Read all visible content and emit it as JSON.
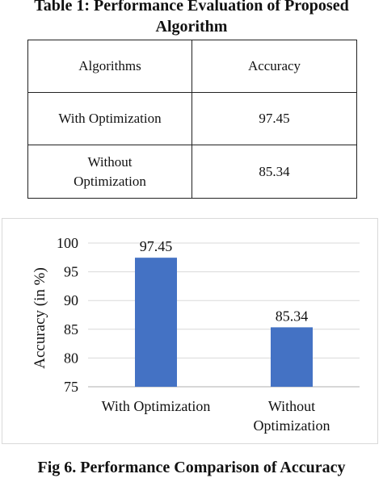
{
  "table": {
    "title_line1": "Table 1: Performance Evaluation of Proposed",
    "title_line2": "Algorithm",
    "header": [
      "Algorithms",
      "Accuracy"
    ],
    "rows": [
      {
        "algorithm_line1": "With Optimization",
        "algorithm_line2": "",
        "accuracy": "97.45"
      },
      {
        "algorithm_line1": "Without",
        "algorithm_line2": "Optimization",
        "accuracy": "85.34"
      }
    ]
  },
  "figure": {
    "caption": "Fig 6. Performance Comparison of Accuracy"
  },
  "chart_data": {
    "type": "bar",
    "categories": [
      [
        "With Optimization"
      ],
      [
        "Without",
        "Optimization"
      ]
    ],
    "values": [
      97.45,
      85.34
    ],
    "data_labels": [
      "97.45",
      "85.34"
    ],
    "ylabel": "Accuracy (in %)",
    "xlabel": "",
    "ylim": [
      75,
      100
    ],
    "yticks": [
      75,
      80,
      85,
      90,
      95,
      100
    ],
    "grid": true,
    "legend": "none",
    "bar_color": "#4472c4",
    "grid_color": "#d9d9d9",
    "axis_color": "#bfbfbf"
  }
}
